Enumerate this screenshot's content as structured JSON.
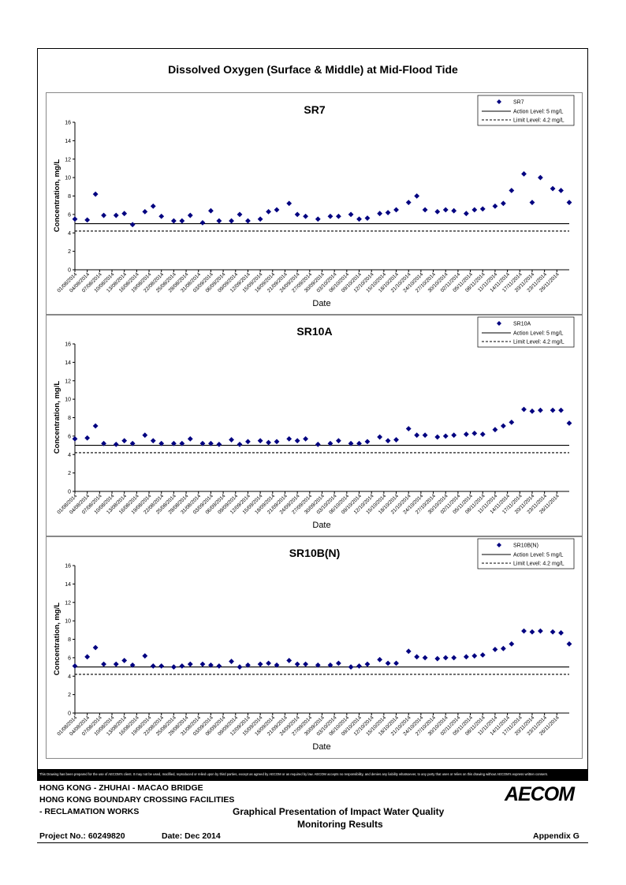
{
  "page_title": "Dissolved Oxygen (Surface & Middle) at Mid-Flood Tide",
  "disclaimer": "This Drawing has been prepared for the use of AECOM's client. It may not be used, modified, reproduced or relied upon by third parties, except as agreed by AECOM or as required by law. AECOM accepts no responsibility, and denies any liability whatsoever, to any party that uses or relies on this drawing without AECOM's express written consent.",
  "footer": {
    "line1": "HONG KONG - ZHUHAI - MACAO BRIDGE",
    "line2": "HONG KONG BOUNDARY CROSSING FACILITIES",
    "line3": "- RECLAMATION WORKS",
    "center_line1": "Graphical Presentation of Impact Water Quality",
    "center_line2": "Monitoring Results",
    "project_no": "Project No.: 60249820",
    "date": "Date: Dec 2014",
    "appendix": "Appendix G",
    "logo": "AECOM"
  },
  "chart_data": [
    {
      "type": "scatter",
      "title": "SR7",
      "xlabel": "Date",
      "ylabel": "Concentration, mg/L",
      "ylim": [
        0,
        16
      ],
      "yticks": [
        0,
        2,
        4,
        6,
        8,
        10,
        12,
        14,
        16
      ],
      "xticks": [
        "01/08/2014",
        "04/08/2014",
        "07/08/2014",
        "10/08/2014",
        "13/08/2014",
        "16/08/2014",
        "19/08/2014",
        "22/08/2014",
        "25/08/2014",
        "28/08/2014",
        "31/08/2014",
        "03/09/2014",
        "06/09/2014",
        "09/09/2014",
        "12/09/2014",
        "15/09/2014",
        "18/09/2014",
        "21/09/2014",
        "24/09/2014",
        "27/09/2014",
        "30/09/2014",
        "03/10/2014",
        "06/10/2014",
        "09/10/2014",
        "12/10/2014",
        "15/10/2014",
        "18/10/2014",
        "21/10/2014",
        "24/10/2014",
        "27/10/2014",
        "30/10/2014",
        "02/11/2014",
        "05/11/2014",
        "08/11/2014",
        "11/11/2014",
        "14/11/2014",
        "17/11/2014",
        "20/11/2014",
        "23/11/2014",
        "26/11/2014"
      ],
      "x": [
        "01/08/2014",
        "04/08/2014",
        "06/08/2014",
        "08/08/2014",
        "11/08/2014",
        "13/08/2014",
        "15/08/2014",
        "18/08/2014",
        "20/08/2014",
        "22/08/2014",
        "25/08/2014",
        "27/08/2014",
        "29/08/2014",
        "01/09/2014",
        "03/09/2014",
        "05/09/2014",
        "08/09/2014",
        "10/09/2014",
        "12/09/2014",
        "15/09/2014",
        "17/09/2014",
        "19/09/2014",
        "22/09/2014",
        "24/09/2014",
        "26/09/2014",
        "29/09/2014",
        "02/10/2014",
        "04/10/2014",
        "07/10/2014",
        "09/10/2014",
        "11/10/2014",
        "14/10/2014",
        "16/10/2014",
        "18/10/2014",
        "21/10/2014",
        "23/10/2014",
        "25/10/2014",
        "28/10/2014",
        "30/10/2014",
        "01/11/2014",
        "04/11/2014",
        "06/11/2014",
        "08/11/2014",
        "11/11/2014",
        "13/11/2014",
        "15/11/2014",
        "18/11/2014",
        "20/11/2014",
        "22/11/2014",
        "25/11/2014",
        "27/11/2014",
        "29/11/2014"
      ],
      "values": [
        5.5,
        5.4,
        8.2,
        5.9,
        5.9,
        6.1,
        4.9,
        6.3,
        6.9,
        5.8,
        5.3,
        5.3,
        5.9,
        5.1,
        6.4,
        5.3,
        5.3,
        6.0,
        5.3,
        5.5,
        6.3,
        6.5,
        7.2,
        6.0,
        5.8,
        5.5,
        5.8,
        5.8,
        6.0,
        5.5,
        5.6,
        6.1,
        6.2,
        6.5,
        7.3,
        8.0,
        6.5,
        6.3,
        6.5,
        6.4,
        6.1,
        6.5,
        6.6,
        6.9,
        7.2,
        8.6,
        10.4,
        7.3,
        10.0,
        8.8,
        8.6,
        7.3
      ],
      "thresholds": [
        {
          "name": "Action Level: 5 mg/L",
          "value": 5,
          "style": "solid"
        },
        {
          "name": "Limit Level: 4.2 mg/L",
          "value": 4.2,
          "style": "dashed"
        }
      ],
      "legend": [
        "SR7",
        "Action Level: 5 mg/L",
        "Limit Level: 4.2 mg/L"
      ],
      "legend_position": "top-right",
      "marker_color": "#000080"
    },
    {
      "type": "scatter",
      "title": "SR10A",
      "xlabel": "Date",
      "ylabel": "Concentration, mg/L",
      "ylim": [
        0,
        16
      ],
      "yticks": [
        0,
        2,
        4,
        6,
        8,
        10,
        12,
        14,
        16
      ],
      "xticks": [
        "01/08/2014",
        "04/08/2014",
        "07/08/2014",
        "10/08/2014",
        "13/08/2014",
        "16/08/2014",
        "19/08/2014",
        "22/08/2014",
        "25/08/2014",
        "28/08/2014",
        "31/08/2014",
        "03/09/2014",
        "06/09/2014",
        "09/09/2014",
        "12/09/2014",
        "15/09/2014",
        "18/09/2014",
        "21/09/2014",
        "24/09/2014",
        "27/09/2014",
        "30/09/2014",
        "03/10/2014",
        "06/10/2014",
        "09/10/2014",
        "12/10/2014",
        "15/10/2014",
        "18/10/2014",
        "21/10/2014",
        "24/10/2014",
        "27/10/2014",
        "30/10/2014",
        "02/11/2014",
        "05/11/2014",
        "08/11/2014",
        "11/11/2014",
        "14/11/2014",
        "17/11/2014",
        "20/11/2014",
        "23/11/2014",
        "26/11/2014"
      ],
      "x": [
        "01/08/2014",
        "04/08/2014",
        "06/08/2014",
        "08/08/2014",
        "11/08/2014",
        "13/08/2014",
        "15/08/2014",
        "18/08/2014",
        "20/08/2014",
        "22/08/2014",
        "25/08/2014",
        "27/08/2014",
        "29/08/2014",
        "01/09/2014",
        "03/09/2014",
        "05/09/2014",
        "08/09/2014",
        "10/09/2014",
        "12/09/2014",
        "15/09/2014",
        "17/09/2014",
        "19/09/2014",
        "22/09/2014",
        "24/09/2014",
        "26/09/2014",
        "29/09/2014",
        "02/10/2014",
        "04/10/2014",
        "07/10/2014",
        "09/10/2014",
        "11/10/2014",
        "14/10/2014",
        "16/10/2014",
        "18/10/2014",
        "21/10/2014",
        "23/10/2014",
        "25/10/2014",
        "28/10/2014",
        "30/10/2014",
        "01/11/2014",
        "04/11/2014",
        "06/11/2014",
        "08/11/2014",
        "11/11/2014",
        "13/11/2014",
        "15/11/2014",
        "18/11/2014",
        "20/11/2014",
        "22/11/2014",
        "25/11/2014",
        "27/11/2014",
        "29/11/2014"
      ],
      "values": [
        5.7,
        5.8,
        7.1,
        5.2,
        5.1,
        5.5,
        5.2,
        6.1,
        5.5,
        5.2,
        5.2,
        5.2,
        5.7,
        5.2,
        5.2,
        5.1,
        5.6,
        5.1,
        5.4,
        5.5,
        5.3,
        5.4,
        5.7,
        5.5,
        5.7,
        5.1,
        5.2,
        5.5,
        5.2,
        5.2,
        5.4,
        5.9,
        5.5,
        5.6,
        6.8,
        6.1,
        6.1,
        5.9,
        6.0,
        6.1,
        6.2,
        6.3,
        6.2,
        6.7,
        7.1,
        7.5,
        8.9,
        8.7,
        8.8,
        8.8,
        8.8,
        7.4
      ],
      "thresholds": [
        {
          "name": "Action Level: 5 mg/L",
          "value": 5,
          "style": "solid"
        },
        {
          "name": "Limit Level: 4.2 mg/L",
          "value": 4.2,
          "style": "dashed"
        }
      ],
      "legend": [
        "SR10A",
        "Action Level: 5 mg/L",
        "Limit Level: 4.2 mg/L"
      ],
      "legend_position": "top-right",
      "marker_color": "#000080"
    },
    {
      "type": "scatter",
      "title": "SR10B(N)",
      "xlabel": "Date",
      "ylabel": "Concentration, mg/L",
      "ylim": [
        0,
        16
      ],
      "yticks": [
        0,
        2,
        4,
        6,
        8,
        10,
        12,
        14,
        16
      ],
      "xticks": [
        "01/08/2014",
        "04/08/2014",
        "07/08/2014",
        "10/08/2014",
        "13/08/2014",
        "16/08/2014",
        "19/08/2014",
        "22/08/2014",
        "25/08/2014",
        "28/08/2014",
        "31/08/2014",
        "03/09/2014",
        "06/09/2014",
        "09/09/2014",
        "12/09/2014",
        "15/09/2014",
        "18/09/2014",
        "21/09/2014",
        "24/09/2014",
        "27/09/2014",
        "30/09/2014",
        "03/10/2014",
        "06/10/2014",
        "09/10/2014",
        "12/10/2014",
        "15/10/2014",
        "18/10/2014",
        "21/10/2014",
        "24/10/2014",
        "27/10/2014",
        "30/10/2014",
        "02/11/2014",
        "05/11/2014",
        "08/11/2014",
        "11/11/2014",
        "14/11/2014",
        "17/11/2014",
        "20/11/2014",
        "23/11/2014",
        "26/11/2014"
      ],
      "x": [
        "01/08/2014",
        "04/08/2014",
        "06/08/2014",
        "08/08/2014",
        "11/08/2014",
        "13/08/2014",
        "15/08/2014",
        "18/08/2014",
        "20/08/2014",
        "22/08/2014",
        "25/08/2014",
        "27/08/2014",
        "29/08/2014",
        "01/09/2014",
        "03/09/2014",
        "05/09/2014",
        "08/09/2014",
        "10/09/2014",
        "12/09/2014",
        "15/09/2014",
        "17/09/2014",
        "19/09/2014",
        "22/09/2014",
        "24/09/2014",
        "26/09/2014",
        "29/09/2014",
        "02/10/2014",
        "04/10/2014",
        "07/10/2014",
        "09/10/2014",
        "11/10/2014",
        "14/10/2014",
        "16/10/2014",
        "18/10/2014",
        "21/10/2014",
        "23/10/2014",
        "25/10/2014",
        "28/10/2014",
        "30/10/2014",
        "01/11/2014",
        "04/11/2014",
        "06/11/2014",
        "08/11/2014",
        "11/11/2014",
        "13/11/2014",
        "15/11/2014",
        "18/11/2014",
        "20/11/2014",
        "22/11/2014",
        "25/11/2014",
        "27/11/2014",
        "29/11/2014"
      ],
      "values": [
        5.1,
        6.1,
        7.1,
        5.3,
        5.3,
        5.7,
        5.2,
        6.2,
        5.1,
        5.1,
        5.0,
        5.1,
        5.3,
        5.3,
        5.2,
        5.1,
        5.6,
        5.0,
        5.2,
        5.3,
        5.4,
        5.2,
        5.7,
        5.3,
        5.3,
        5.2,
        5.2,
        5.4,
        5.0,
        5.1,
        5.3,
        5.8,
        5.4,
        5.4,
        6.7,
        6.1,
        6.0,
        5.9,
        6.0,
        6.0,
        6.1,
        6.2,
        6.3,
        6.9,
        7.0,
        7.5,
        8.9,
        8.8,
        8.9,
        8.8,
        8.7,
        7.5
      ],
      "thresholds": [
        {
          "name": "Action Level: 5 mg/L",
          "value": 5,
          "style": "solid"
        },
        {
          "name": "Limit Level: 4.2 mg/L",
          "value": 4.2,
          "style": "dashed"
        }
      ],
      "legend": [
        "SR10B(N)",
        "Action Level: 5 mg/L",
        "Limit Level: 4.2 mg/L"
      ],
      "legend_position": "top-right",
      "marker_color": "#000080"
    }
  ]
}
